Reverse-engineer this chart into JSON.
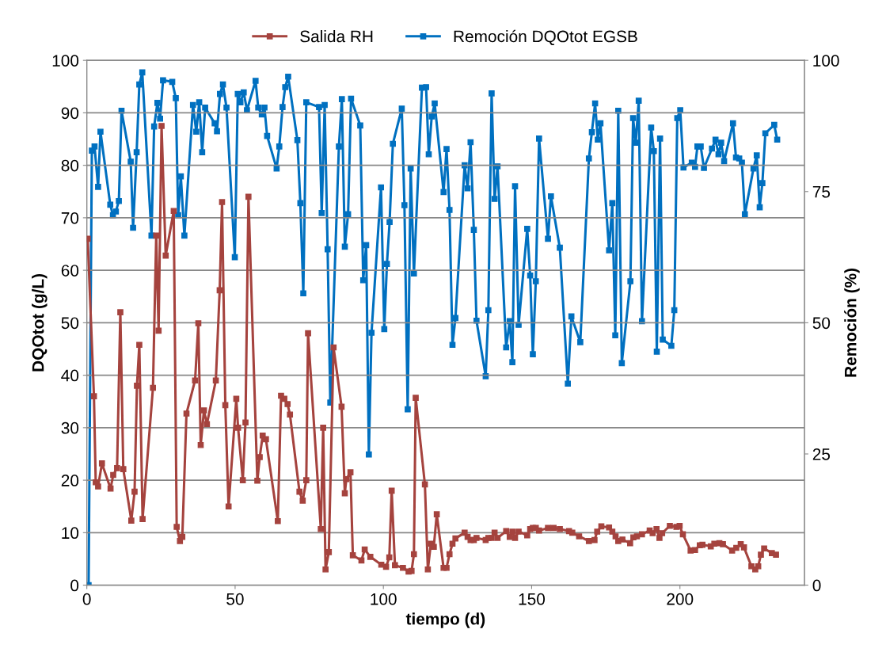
{
  "chart_data": {
    "type": "line",
    "xlabel": "tiempo (d)",
    "ylabel": "DQOtot (g/L)",
    "y2label": "Remoción (%)",
    "xlim": [
      0,
      242
    ],
    "xticks": [
      0,
      50,
      100,
      150,
      200
    ],
    "ylim": [
      0,
      100
    ],
    "yticks": [
      0,
      10,
      20,
      30,
      40,
      50,
      60,
      70,
      80,
      90,
      100
    ],
    "y2lim": [
      0,
      100
    ],
    "y2ticks": [
      0,
      25,
      50,
      75,
      100
    ],
    "grid": "y",
    "legend": "top",
    "marker": "square",
    "line_style": "solid",
    "series": [
      {
        "name": "Salida RH",
        "color": "#a5433e",
        "x": [
          0.3,
          2.4,
          3,
          3.8,
          5.1,
          8,
          8.9,
          10.2,
          11.3,
          12.3,
          15,
          16.1,
          16.9,
          17.7,
          18.8,
          22.3,
          23.4,
          24.2,
          25.2,
          26.6,
          29.3,
          30.3,
          31.4,
          32.2,
          33.6,
          36.5,
          37.6,
          38.4,
          39.5,
          40.5,
          43.5,
          44.8,
          45.6,
          46.7,
          47.8,
          50.4,
          51,
          52.6,
          53.5,
          54.5,
          57.5,
          58.3,
          59.3,
          60.4,
          64.4,
          65.5,
          66.6,
          67.7,
          68.5,
          71.7,
          72.8,
          74,
          74.6,
          78.9,
          79.7,
          80.5,
          81.6,
          83.2,
          85.9,
          87,
          87.5,
          88.9,
          89.7,
          92.6,
          93.7,
          95.6,
          99.3,
          100.9,
          102,
          102.8,
          103.9,
          106.6,
          108.5,
          109.5,
          110.3,
          110.9,
          114,
          115,
          116,
          117,
          118,
          120.3,
          121.3,
          122.3,
          123.3,
          124.3,
          127.4,
          128.4,
          129.4,
          130.5,
          131.4,
          134.5,
          135.4,
          136.5,
          137.5,
          138.5,
          141.4,
          142.6,
          143.5,
          144.4,
          145.6,
          148.5,
          149.5,
          150.4,
          151.4,
          152.5,
          155.5,
          157.4,
          159.5,
          162.6,
          163.7,
          166,
          169.3,
          171.2,
          172.1,
          173.5,
          176.1,
          177.2,
          178.3,
          179.2,
          180.6,
          183.2,
          184.3,
          185.5,
          187.2,
          189.8,
          190.8,
          192.1,
          193.1,
          194,
          196.6,
          198.8,
          199.9,
          201,
          203.6,
          205.1,
          206.7,
          207.6,
          210.4,
          211.6,
          213.3,
          214.5,
          217.6,
          219,
          220.5,
          221.6,
          224.1,
          225.4,
          226.4,
          227.3,
          228.4,
          231,
          232.4
        ],
        "values": [
          66,
          36,
          19.6,
          18.8,
          23.2,
          18.4,
          21,
          22.3,
          52,
          22.1,
          12.3,
          17.8,
          38,
          45.8,
          12.6,
          37.6,
          66.6,
          48.5,
          87.5,
          62.8,
          71.3,
          11.1,
          8.4,
          9.2,
          32.7,
          39,
          49.9,
          26.7,
          33.3,
          30.7,
          39,
          56.2,
          73,
          34.3,
          15,
          35.5,
          30,
          20,
          31,
          74,
          19.9,
          24.4,
          28.5,
          27.8,
          12.2,
          36.1,
          35.5,
          34.5,
          32.5,
          17.8,
          16.1,
          20,
          48,
          10.7,
          30,
          3,
          6.3,
          45.3,
          34,
          17.5,
          20.2,
          21.5,
          5.7,
          4.7,
          6.8,
          5.4,
          3.9,
          3.5,
          5.3,
          18,
          3.8,
          3.3,
          2.6,
          2.7,
          5.9,
          35.7,
          19.2,
          3,
          7.9,
          7.3,
          13.5,
          3.3,
          3.3,
          5.9,
          7.9,
          8.9,
          10,
          9.2,
          8.6,
          8.6,
          9,
          8.6,
          9,
          9,
          10,
          9,
          10.3,
          9.2,
          10.2,
          9,
          10.2,
          9.5,
          10.7,
          10.9,
          10.9,
          10.4,
          10.9,
          10.9,
          10.7,
          10.3,
          10,
          9.3,
          8.4,
          8.6,
          10.2,
          11.2,
          11,
          10.2,
          9.3,
          8.4,
          8.7,
          8,
          9.1,
          9.3,
          9.7,
          10.4,
          9.9,
          10.7,
          9,
          9.9,
          11.3,
          11.1,
          11.3,
          9.7,
          6.6,
          6.7,
          7.6,
          7.7,
          7.4,
          7.9,
          8,
          7.8,
          6.6,
          7.1,
          7.8,
          7.2,
          3.6,
          3,
          3.6,
          5.8,
          7,
          6.1,
          5.8
        ]
      },
      {
        "name": "Remoción DQOtot EGSB",
        "color": "#0070c0",
        "axis": "y2",
        "x": [
          0.6,
          1.7,
          2.6,
          3.8,
          4.6,
          7.9,
          8.8,
          9.8,
          10.8,
          11.7,
          14.8,
          15.6,
          16.8,
          17.7,
          18.7,
          21.8,
          22.7,
          23.8,
          24.7,
          25.7,
          28.8,
          30,
          30.8,
          31.7,
          32.9,
          35.8,
          36.9,
          37.9,
          38.9,
          39.9,
          43.1,
          43.9,
          44.9,
          45.9,
          47.1,
          49.9,
          50.9,
          51.8,
          52.9,
          54,
          56.9,
          57.8,
          59,
          59.9,
          60.8,
          64,
          64.9,
          66,
          66.9,
          67.9,
          71,
          72,
          73,
          74,
          78.3,
          79.2,
          80.2,
          81.2,
          82.1,
          85,
          86,
          87,
          88.1,
          89.1,
          92.2,
          93.2,
          94.2,
          95.1,
          96,
          99.2,
          100.3,
          101.2,
          102.1,
          103.2,
          106.2,
          107.1,
          108.2,
          109.2,
          110.3,
          113,
          114.4,
          115.3,
          116.3,
          117.3,
          120.3,
          121.3,
          122.3,
          123.3,
          124.3,
          127.4,
          128.4,
          129.4,
          130.5,
          131.4,
          134.5,
          135.4,
          136.5,
          137.5,
          138.5,
          141.4,
          142.6,
          143.5,
          144.4,
          145.6,
          148.5,
          149.5,
          150.4,
          151.4,
          152.5,
          155.5,
          156.5,
          159.5,
          162.2,
          163.4,
          166.4,
          169.3,
          170.3,
          171.4,
          172.3,
          173.2,
          176.1,
          177.2,
          178.2,
          179.2,
          180.4,
          183.3,
          184.2,
          185.1,
          186.1,
          187.2,
          190.3,
          191.2,
          192.2,
          193.3,
          194.2,
          197.1,
          198.1,
          199.1,
          200.1,
          201.2,
          204,
          205.1,
          205.9,
          207,
          208.1,
          210.8,
          212,
          213,
          213.9,
          214.9,
          217.9,
          218.9,
          220,
          220.9,
          221.9,
          224.8,
          225.9,
          226.9,
          227.8,
          228.8,
          231.8,
          232.8
        ],
        "values": [
          0,
          82.8,
          83.6,
          75.9,
          86.4,
          72.5,
          70.5,
          71.2,
          73.2,
          90.4,
          80.7,
          68.1,
          82.5,
          95.4,
          97.7,
          66.6,
          87.4,
          91.9,
          88.9,
          96.2,
          95.9,
          92.8,
          70.5,
          77.9,
          66.6,
          91.5,
          86.4,
          92,
          82.5,
          91,
          88,
          86.5,
          93.6,
          95.4,
          91,
          62.5,
          93.6,
          92,
          93.9,
          90.5,
          96.1,
          91,
          89.7,
          91,
          85.6,
          79.4,
          83.6,
          91.1,
          94.9,
          96.9,
          84.8,
          72.8,
          55.6,
          92,
          91.1,
          70.9,
          91.5,
          64,
          34.8,
          83.6,
          92.6,
          64.5,
          70.7,
          92.7,
          87.6,
          58.1,
          64.8,
          24.9,
          48.1,
          75.8,
          48.8,
          61.2,
          69.2,
          84.1,
          90.8,
          72.4,
          33.5,
          79.4,
          59.4,
          94.8,
          94.9,
          82.1,
          89.3,
          91.8,
          74.9,
          83.1,
          71.5,
          45.8,
          50.9,
          80,
          75.6,
          84.4,
          67.7,
          50.4,
          39.8,
          52.4,
          93.7,
          73.6,
          79.8,
          45.3,
          50.3,
          42.5,
          76,
          49.6,
          67.9,
          59,
          44,
          57.9,
          85.1,
          66,
          74.1,
          64.3,
          38.4,
          51.2,
          46.3,
          81.3,
          86.3,
          91.8,
          84.9,
          88,
          63.8,
          72.8,
          47.6,
          90.4,
          42.3,
          57.9,
          89,
          84.3,
          92.3,
          50.3,
          87.2,
          82.7,
          44.5,
          85.1,
          46.8,
          45.6,
          52.4,
          89,
          90.5,
          79.6,
          80.5,
          79.7,
          83.6,
          83.6,
          79.5,
          83.2,
          84.9,
          82.1,
          84.3,
          80.8,
          88,
          81.5,
          81.3,
          80.5,
          70.7,
          79.4,
          81.9,
          72,
          76.6,
          86.1,
          87.7,
          84.9
        ]
      }
    ]
  }
}
